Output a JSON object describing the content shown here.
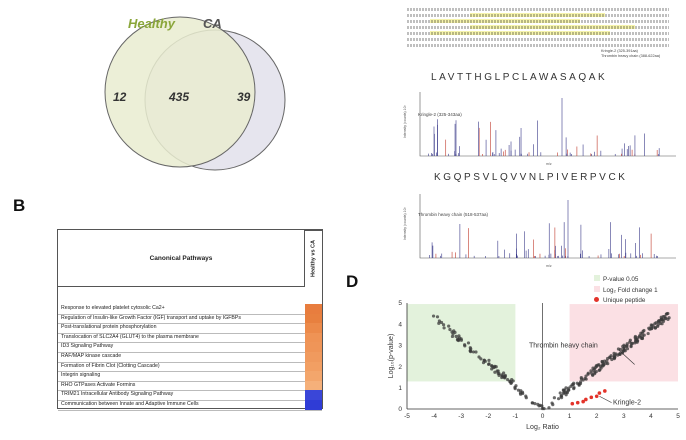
{
  "panel_labels": {
    "b": "B",
    "d": "D"
  },
  "venn": {
    "set_a": "Healthy",
    "set_b": "CA",
    "only_a": "12",
    "both": "435",
    "only_b": "39",
    "color_a_label": "#8aa63a",
    "color_b_label": "#555555"
  },
  "pathways": {
    "header": "Canonical Pathways",
    "comparison": "Healthy vs CA",
    "rows": [
      {
        "name": "Response to elevated platelet cytosolic Ca2+",
        "color": "#e87d3e"
      },
      {
        "name": "Regulation of Insulin-like Growth Factor (IGF) transport and uptake by IGFBPs",
        "color": "#e8803f"
      },
      {
        "name": "Post-translational protein phosphorylation",
        "color": "#ec8a4a"
      },
      {
        "name": "Translocation of SLC2A4 (GLUT4) to the plasma membrane",
        "color": "#ef9355"
      },
      {
        "name": "ID3 Signaling Pathway",
        "color": "#ef9558"
      },
      {
        "name": "RAF/MAP kinase cascade",
        "color": "#f09a5e"
      },
      {
        "name": "Formation of Fibrin Clot (Clotting Cascade)",
        "color": "#f29f63"
      },
      {
        "name": "Integrin signaling",
        "color": "#f3a66c"
      },
      {
        "name": "RHO GTPases Activate Formins",
        "color": "#f5b07a"
      },
      {
        "name": "TRIM21 Intracellular Antibody Signaling Pathway",
        "color": "#3a46d8"
      },
      {
        "name": "Communication between Innate and Adaptive Immune Cells",
        "color": "#2f3cd6"
      }
    ]
  },
  "sequence": {
    "legend": [
      "Kringle-2 (325-391aa)",
      "Thrombin heavy chain (388-622aa)"
    ]
  },
  "spectrum1": {
    "peptide": "LAVTTHGLPCLAWASAQAK",
    "label": "Kringle-2 (325-343aa)"
  },
  "spectrum2": {
    "peptide": "KGQPSVLQVVNLPIVERPVCK",
    "label": "Thrombin heavy chain (518-537aa)"
  },
  "spectra_axis": {
    "ylabel": "Intensity (counts) 10³",
    "xlabel": "m/z"
  },
  "volcano": {
    "legend": [
      "P-value 0.05",
      "Log₂ Fold change 1",
      "Unique peptide"
    ],
    "annotations": {
      "thrombin": "Thrombin heavy chain",
      "kringle": "Kringle-2"
    },
    "xlabel": "Log₂ Ratio",
    "ylabel": "Log₁₀(p-value)",
    "xticks": [
      "-5",
      "-4",
      "-3",
      "-2",
      "-1",
      "0",
      "1",
      "2",
      "3",
      "4",
      "5"
    ],
    "yticks": [
      "0",
      "1",
      "2",
      "3",
      "4",
      "5"
    ],
    "colors": {
      "green_zone": "#e3f2dc",
      "pink_zone": "#fbe0e4",
      "unique": "#e3332a"
    }
  },
  "chart_data": {
    "type": "scatter",
    "xlabel": "Log₂ Ratio",
    "ylabel": "Log₁₀(p-value)",
    "xlim": [
      -5,
      5
    ],
    "ylim": [
      0,
      5
    ],
    "series": [
      {
        "name": "Unique peptide",
        "x": [
          1.1,
          1.3,
          1.5,
          1.6,
          1.8,
          2.0,
          2.1,
          2.3
        ],
        "y": [
          0.25,
          0.3,
          0.35,
          0.45,
          0.55,
          0.6,
          0.75,
          0.85
        ]
      }
    ]
  }
}
